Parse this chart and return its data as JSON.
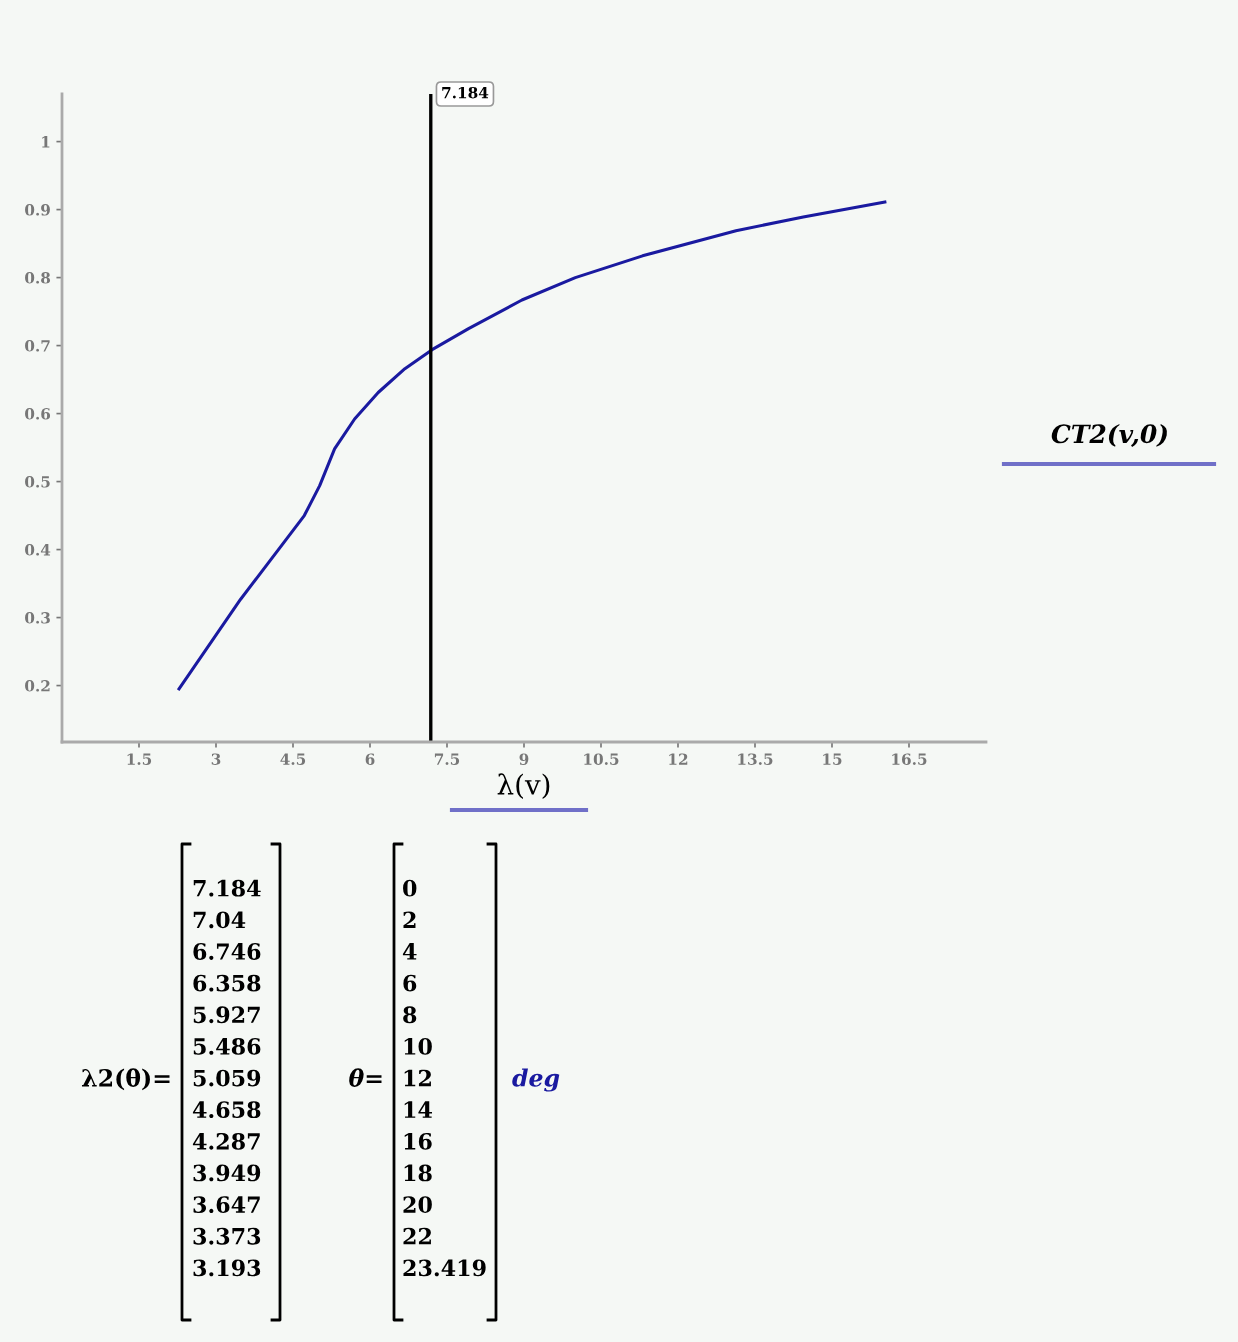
{
  "chart_data": {
    "type": "line",
    "xlabel": "λ(v)",
    "ylabel": "CT2(v,0)",
    "xlim": [
      0,
      18
    ],
    "ylim": [
      0.117,
      1.07
    ],
    "xticks": [
      1.5,
      3,
      4.5,
      6,
      7.5,
      9,
      10.5,
      12,
      13.5,
      15,
      16.5
    ],
    "yticks": [
      0.2,
      0.3,
      0.4,
      0.5,
      0.6,
      0.7,
      0.8,
      0.9,
      1
    ],
    "grid": false,
    "legend": false,
    "marker": "none",
    "line_style": "solid",
    "series": [
      {
        "color": "#1a1aa0",
        "x": [
          2.28,
          3.48,
          4.72,
          5.02,
          5.31,
          5.7,
          6.16,
          6.68,
          7.21,
          7.92,
          8.96,
          10.0,
          11.31,
          13.13,
          14.44,
          16.03
        ],
        "values": [
          0.195,
          0.327,
          0.45,
          0.494,
          0.548,
          0.592,
          0.631,
          0.666,
          0.694,
          0.725,
          0.767,
          0.8,
          0.832,
          0.869,
          0.889,
          0.911
        ]
      }
    ],
    "ref_lines": [
      {
        "axis": "x",
        "value": 7.184,
        "label": "7.184",
        "color": "#000000",
        "line_style": "solid"
      }
    ],
    "annotations": [
      "λ2(θ)=",
      "7.184\n7.04\n6.746\n6.358\n5.927\n5.486\n5.059\n4.658\n4.287\n3.949\n3.647\n3.373\n3.193",
      "θ=",
      "0\n2\n4\n6\n8\n10\n12\n14\n16\n18\n20\n22\n23.419",
      "deg"
    ]
  }
}
